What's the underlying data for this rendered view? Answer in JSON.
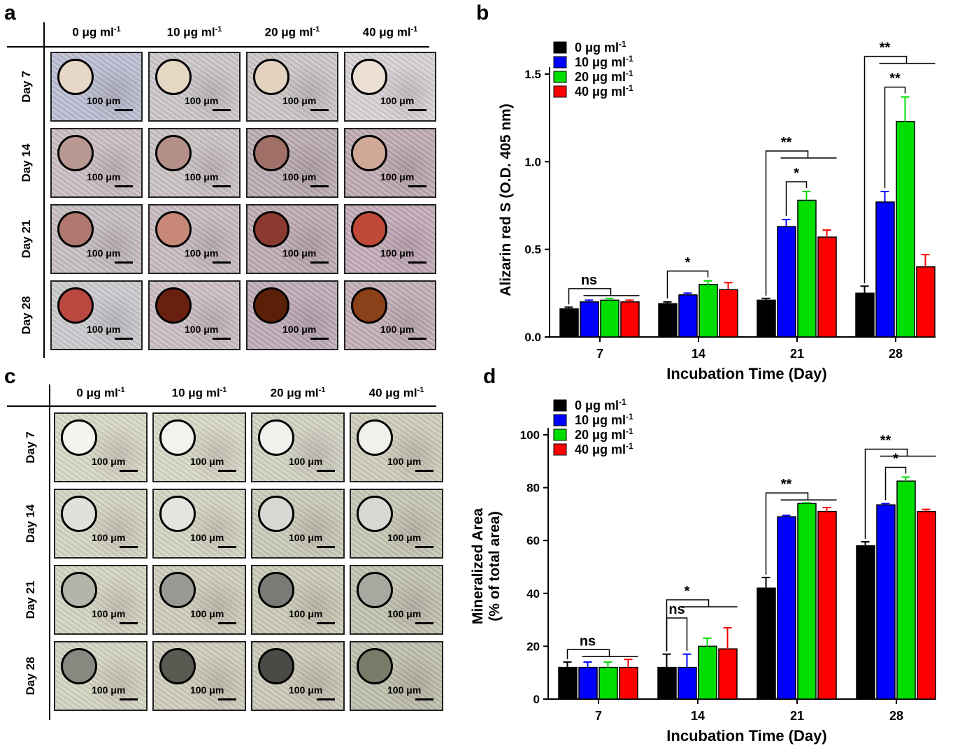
{
  "panels": {
    "a": "a",
    "b": "b",
    "c": "c",
    "d": "d"
  },
  "image_grid_a": {
    "columns": [
      "0 μg ml",
      "10 μg ml",
      "20 μg ml",
      "40 μg ml"
    ],
    "col_superscript": "-1",
    "rows": [
      "Day 7",
      "Day 14",
      "Day 21",
      "Day 28"
    ],
    "scale_label": "100 μm",
    "well_colors": [
      [
        "#e8d8c8",
        "#e6d6c4",
        "#e4d2c0",
        "#ece0d4"
      ],
      [
        "#b89890",
        "#b49088",
        "#a07068",
        "#d0a898"
      ],
      [
        "#b07870",
        "#c88878",
        "#8a3a30",
        "#c04838"
      ],
      [
        "#b84840",
        "#6a2010",
        "#5a2008",
        "#8a4018"
      ]
    ],
    "bg_colors": [
      [
        "#b8bcd0",
        "#c8c4c8",
        "#c8c4c4",
        "#d4d0d4"
      ],
      [
        "#c8bcc0",
        "#c8c0c0",
        "#b8a8b0",
        "#bca8b0"
      ],
      [
        "#c4bcc0",
        "#c4b8bc",
        "#bca8b0",
        "#c0a8b4"
      ],
      [
        "#c8c8cc",
        "#c8bcc0",
        "#bca8b4",
        "#c0acb4"
      ]
    ]
  },
  "image_grid_c": {
    "columns": [
      "0 μg ml",
      "10 μg ml",
      "20 μg ml",
      "40 μg ml"
    ],
    "col_superscript": "-1",
    "rows": [
      "Day 7",
      "Day 14",
      "Day 21",
      "Day 28"
    ],
    "scale_label": "100 μm",
    "well_colors": [
      [
        "#f4f4f0",
        "#f2f2ee",
        "#f0f0ec",
        "#f0f0ec"
      ],
      [
        "#e0e0dc",
        "#e4e4e0",
        "#d8d8d4",
        "#d8d8d4"
      ],
      [
        "#b4b4aa",
        "#9a9a94",
        "#7a7a76",
        "#a8a8a0"
      ],
      [
        "#888880",
        "#5a5a52",
        "#4a4a46",
        "#7a7a68"
      ]
    ],
    "bg_colors": [
      [
        "#d6d6c4",
        "#d6d6c4",
        "#d0d0c0",
        "#cccab8"
      ],
      [
        "#d2d2c0",
        "#d2d2c0",
        "#c8c8b6",
        "#c4c4b2"
      ],
      [
        "#d2d2c0",
        "#cccab8",
        "#c8c8b4",
        "#c0c0ae"
      ],
      [
        "#d2d2c0",
        "#cccab8",
        "#c8c6b4",
        "#bcbcaa"
      ]
    ]
  },
  "chart_data": [
    {
      "panel": "b",
      "type": "bar",
      "categories": [
        "7",
        "14",
        "21",
        "28"
      ],
      "xlabel": "Incubation Time (Day)",
      "ylabel": "Alizarin red S (O.D. 405 nm)",
      "ylim": [
        0,
        1.5
      ],
      "yticks": [
        "0.0",
        "0.5",
        "1.0",
        "1.5"
      ],
      "legend_position": "top-left",
      "series": [
        {
          "name": "0 μg ml",
          "color": "#000000",
          "values": [
            0.16,
            0.19,
            0.21,
            0.25
          ],
          "errors": [
            0.01,
            0.01,
            0.01,
            0.04
          ]
        },
        {
          "name": "10 μg ml",
          "color": "#0000ff",
          "values": [
            0.2,
            0.24,
            0.63,
            0.77
          ],
          "errors": [
            0.01,
            0.01,
            0.04,
            0.06
          ]
        },
        {
          "name": "20 μg ml",
          "color": "#00dd00",
          "values": [
            0.21,
            0.3,
            0.78,
            1.23
          ],
          "errors": [
            0.01,
            0.02,
            0.05,
            0.14
          ]
        },
        {
          "name": "40 μg ml",
          "color": "#ff0000",
          "values": [
            0.2,
            0.27,
            0.57,
            0.4
          ],
          "errors": [
            0.01,
            0.04,
            0.04,
            0.07
          ]
        }
      ],
      "legend_superscript": "-1",
      "annotations": [
        {
          "text": "ns",
          "group": 0,
          "type": "bracket-to-rest"
        },
        {
          "text": "*",
          "group": 1,
          "type": "pair",
          "from": 0,
          "to": 2
        },
        {
          "text": "**",
          "group": 2,
          "type": "bracket-to-rest"
        },
        {
          "text": "*",
          "group": 2,
          "type": "pair",
          "from": 1,
          "to": 2
        },
        {
          "text": "**",
          "group": 3,
          "type": "bracket-to-rest"
        },
        {
          "text": "**",
          "group": 3,
          "type": "pair",
          "from": 1,
          "to": 2
        }
      ]
    },
    {
      "panel": "d",
      "type": "bar",
      "categories": [
        "7",
        "14",
        "21",
        "28"
      ],
      "xlabel": "Incubation Time (Day)",
      "ylabel": "Mineralized Area",
      "ylabel2": "(% of total area)",
      "ylim": [
        0,
        100
      ],
      "yticks": [
        "0",
        "20",
        "40",
        "60",
        "80",
        "100"
      ],
      "legend_position": "top-left",
      "series": [
        {
          "name": "0 μg ml",
          "color": "#000000",
          "values": [
            12,
            12,
            42,
            58
          ],
          "errors": [
            2,
            5,
            4,
            1.5
          ]
        },
        {
          "name": "10 μg ml",
          "color": "#0000ff",
          "values": [
            12,
            12,
            69,
            73.5
          ],
          "errors": [
            2,
            5,
            0.5,
            0.5
          ]
        },
        {
          "name": "20 μg ml",
          "color": "#00dd00",
          "values": [
            12,
            20,
            74,
            82.5
          ],
          "errors": [
            2,
            3,
            0.3,
            1.5
          ]
        },
        {
          "name": "40 μg ml",
          "color": "#ff0000",
          "values": [
            12,
            19,
            71,
            71
          ],
          "errors": [
            3,
            8,
            1.5,
            0.8
          ]
        }
      ],
      "legend_superscript": "-1",
      "annotations": [
        {
          "text": "ns",
          "group": 0,
          "type": "bracket-to-rest"
        },
        {
          "text": "*",
          "group": 1,
          "type": "bracket-to-rest"
        },
        {
          "text": "ns",
          "group": 1,
          "type": "pair",
          "from": 0,
          "to": 1
        },
        {
          "text": "**",
          "group": 2,
          "type": "bracket-to-rest"
        },
        {
          "text": "**",
          "group": 3,
          "type": "bracket-to-rest"
        },
        {
          "text": "*",
          "group": 3,
          "type": "pair",
          "from": 1,
          "to": 2
        }
      ]
    }
  ]
}
